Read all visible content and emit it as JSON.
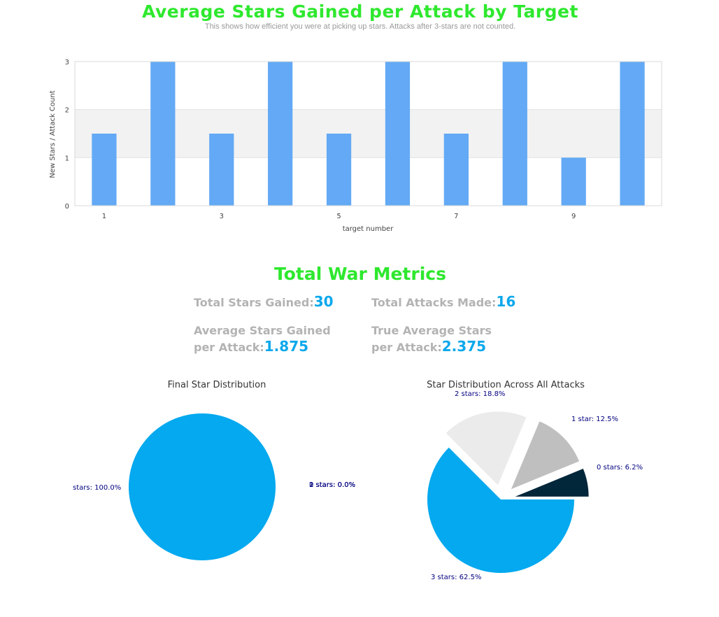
{
  "header": {
    "title": "Average Stars Gained per Attack by Target",
    "subtitle": "This shows how efficient you were at picking up stars. Attacks after 3-stars are not counted."
  },
  "metrics": {
    "title": "Total War Metrics",
    "total_stars_label": "Total Stars Gained:",
    "total_stars_value": "30",
    "total_attacks_label": "Total Attacks Made:",
    "total_attacks_value": "16",
    "avg_stars_label_line1": "Average Stars Gained",
    "avg_stars_label_line2": "per Attack:",
    "avg_stars_value": "1.875",
    "true_avg_label_line1": "True Average Stars",
    "true_avg_label_line2": "per Attack:",
    "true_avg_value": "2.375"
  },
  "colors": {
    "bar": "#63a9f5",
    "title_green": "#2ee82e",
    "value_blue": "#0ba8ec",
    "slice_3": "#04a9ef",
    "slice_2": "#ebebeb",
    "slice_1": "#bfbfbf",
    "slice_0": "#02263a",
    "pie_label": "#000080"
  },
  "chart_data": [
    {
      "type": "bar",
      "title": "Average Stars Gained per Attack by Target",
      "xlabel": "target number",
      "ylabel": "New Stars / Attack Count",
      "x": [
        1,
        2,
        3,
        4,
        5,
        6,
        7,
        8,
        9,
        10
      ],
      "values": [
        1.5,
        3,
        1.5,
        3,
        1.5,
        3,
        1.5,
        3,
        1,
        3
      ],
      "xticks": [
        "1",
        "3",
        "5",
        "7",
        "9"
      ],
      "yticks": [
        "0",
        "1",
        "2",
        "3"
      ],
      "ylim": [
        0,
        3
      ],
      "grid": true
    },
    {
      "type": "pie",
      "title": "Final Star Distribution",
      "slices": [
        {
          "label": "stars: 100.0%",
          "value": 100.0
        },
        {
          "label": "1 stars: 0.0%",
          "value": 0
        },
        {
          "label": "2 stars: 0.0%",
          "value": 0
        },
        {
          "label": "0 stars: 0.0%",
          "value": 0
        }
      ]
    },
    {
      "type": "pie",
      "title": "Star Distribution Across All Attacks",
      "slices": [
        {
          "label": "3 stars: 62.5%",
          "value": 62.5
        },
        {
          "label": "2 stars: 18.8%",
          "value": 18.8
        },
        {
          "label": "1 star: 12.5%",
          "value": 12.5
        },
        {
          "label": "0 stars: 6.2%",
          "value": 6.2
        }
      ]
    }
  ]
}
